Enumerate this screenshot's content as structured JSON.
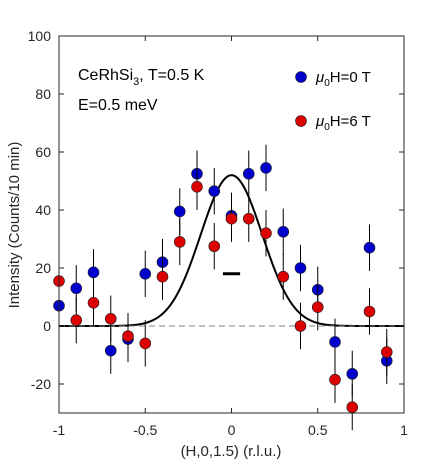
{
  "chart_data": {
    "type": "scatter",
    "xlabel": "(H,0,1.5) (r.l.u.)",
    "ylabel": "Intensity (Counts/10 min)",
    "xlim": [
      -1,
      1
    ],
    "ylim": [
      -30,
      100
    ],
    "xticks": [
      -1,
      -0.5,
      0,
      0.5,
      1
    ],
    "yticks": [
      -20,
      0,
      20,
      40,
      60,
      80,
      100
    ],
    "xtick_labels": [
      "-1",
      "-0.5",
      "0",
      "0.5",
      "1"
    ],
    "ytick_labels": [
      "-20",
      "0",
      "20",
      "40",
      "60",
      "80",
      "100"
    ],
    "grid": false,
    "legend_position": "top-right",
    "annotations": {
      "material": "CeRhSi",
      "material_sub": "3",
      "temperature": ", T=0.5 K",
      "energy": "E=0.5 meV"
    },
    "legend": [
      {
        "mu": "μ",
        "sub": "0",
        "rest": "H=0 T",
        "color": "#0000CC"
      },
      {
        "mu": "μ",
        "sub": "0",
        "rest": "H=6 T",
        "color": "#DD0000"
      }
    ],
    "series": [
      {
        "name": "μ0H=0 T",
        "color": "#0000CC",
        "points": [
          {
            "x": -1.0,
            "y": 7,
            "err": 8
          },
          {
            "x": -0.9,
            "y": 13,
            "err": 8
          },
          {
            "x": -0.8,
            "y": 18.5,
            "err": 8
          },
          {
            "x": -0.7,
            "y": -8.5,
            "err": 8
          },
          {
            "x": -0.6,
            "y": -4.5,
            "err": 8
          },
          {
            "x": -0.5,
            "y": 18,
            "err": 8
          },
          {
            "x": -0.4,
            "y": 22,
            "err": 8
          },
          {
            "x": -0.3,
            "y": 39.5,
            "err": 8
          },
          {
            "x": -0.2,
            "y": 52.5,
            "err": 8
          },
          {
            "x": -0.1,
            "y": 46.5,
            "err": 8
          },
          {
            "x": 0.0,
            "y": 38,
            "err": 8
          },
          {
            "x": 0.1,
            "y": 52.5,
            "err": 8
          },
          {
            "x": 0.2,
            "y": 54.5,
            "err": 8
          },
          {
            "x": 0.3,
            "y": 32.5,
            "err": 8
          },
          {
            "x": 0.4,
            "y": 20,
            "err": 8
          },
          {
            "x": 0.5,
            "y": 12.5,
            "err": 8
          },
          {
            "x": 0.6,
            "y": -5.5,
            "err": 8
          },
          {
            "x": 0.7,
            "y": -16.5,
            "err": 8
          },
          {
            "x": 0.8,
            "y": 27,
            "err": 8
          },
          {
            "x": 0.9,
            "y": -12,
            "err": 8
          }
        ]
      },
      {
        "name": "μ0H=6 T",
        "color": "#DD0000",
        "points": [
          {
            "x": -1.0,
            "y": 15.5,
            "err": 8
          },
          {
            "x": -0.9,
            "y": 2,
            "err": 8
          },
          {
            "x": -0.8,
            "y": 8,
            "err": 8
          },
          {
            "x": -0.7,
            "y": 2.5,
            "err": 8
          },
          {
            "x": -0.6,
            "y": -3.5,
            "err": 8
          },
          {
            "x": -0.5,
            "y": -6,
            "err": 8
          },
          {
            "x": -0.4,
            "y": 17,
            "err": 8
          },
          {
            "x": -0.3,
            "y": 29,
            "err": 8
          },
          {
            "x": -0.2,
            "y": 48,
            "err": 8
          },
          {
            "x": -0.1,
            "y": 27.5,
            "err": 8
          },
          {
            "x": 0.0,
            "y": 37,
            "err": 8
          },
          {
            "x": 0.1,
            "y": 37,
            "err": 8
          },
          {
            "x": 0.2,
            "y": 32,
            "err": 8
          },
          {
            "x": 0.3,
            "y": 17,
            "err": 8
          },
          {
            "x": 0.4,
            "y": 0,
            "err": 8
          },
          {
            "x": 0.5,
            "y": 6.5,
            "err": 8
          },
          {
            "x": 0.6,
            "y": -18.5,
            "err": 8
          },
          {
            "x": 0.7,
            "y": -28,
            "err": 8
          },
          {
            "x": 0.8,
            "y": 5,
            "err": 8
          },
          {
            "x": 0.9,
            "y": -9,
            "err": 8
          }
        ]
      }
    ],
    "fit": {
      "type": "gaussian",
      "amplitude": 52,
      "center": 0,
      "fwhm": 0.42,
      "color": "#000000"
    },
    "resolution_bar": {
      "x_from": -0.05,
      "x_to": 0.05,
      "y": 18
    },
    "reference_line": {
      "y": 0,
      "style": "dashed",
      "color": "#808080"
    }
  }
}
